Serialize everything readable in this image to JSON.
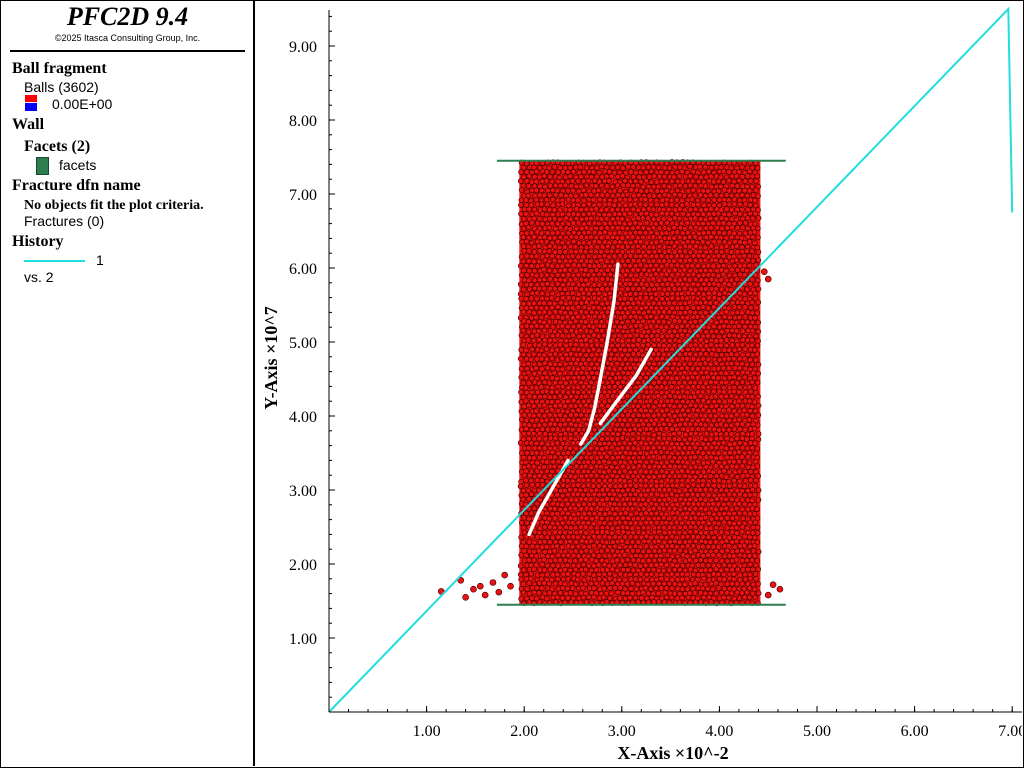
{
  "app": {
    "title": "PFC2D 9.4",
    "copyright": "©2025 Itasca Consulting Group, Inc."
  },
  "legend": {
    "ball_group": "Ball fragment",
    "balls_label": "Balls (3602)",
    "ball_value": "0.00E+00",
    "wall_group": "Wall",
    "facets_label": "Facets (2)",
    "facets_item": "facets",
    "fracture_group": "Fracture dfn name",
    "fracture_msg": "No objects fit the plot criteria.",
    "fractures_label": "Fractures (0)",
    "history_group": "History",
    "history_item": "1",
    "history_vs": "vs. 2"
  },
  "colors": {
    "ball": "#ee1111",
    "ball_edge": "#330000",
    "wall": "#2e7d4f",
    "history": "#22dddd",
    "swatch_top": "#ff0000",
    "swatch_bottom": "#0000ff"
  },
  "plot": {
    "xaxis_label": "X-Axis ×10^-2",
    "yaxis_label": "Y-Axis ×10^7",
    "xticks": [
      "1.00",
      "2.00",
      "3.00",
      "4.00",
      "5.00",
      "6.00",
      "7.00"
    ],
    "yticks": [
      "1.00",
      "2.00",
      "3.00",
      "4.00",
      "5.00",
      "6.00",
      "7.00",
      "8.00",
      "9.00"
    ],
    "xlim": [
      0,
      7.0
    ],
    "ylim": [
      0,
      9.5
    ],
    "walls": [
      {
        "x1": 1.72,
        "x2": 4.68,
        "y": 7.45
      },
      {
        "x1": 1.72,
        "x2": 4.68,
        "y": 1.45
      }
    ],
    "specimen": {
      "x_left": 1.95,
      "x_right": 4.42,
      "y_bottom": 1.45,
      "y_top": 7.45
    },
    "history_1": [
      [
        0,
        0
      ],
      [
        6.96,
        9.5
      ],
      [
        7.0,
        6.75
      ]
    ]
  }
}
